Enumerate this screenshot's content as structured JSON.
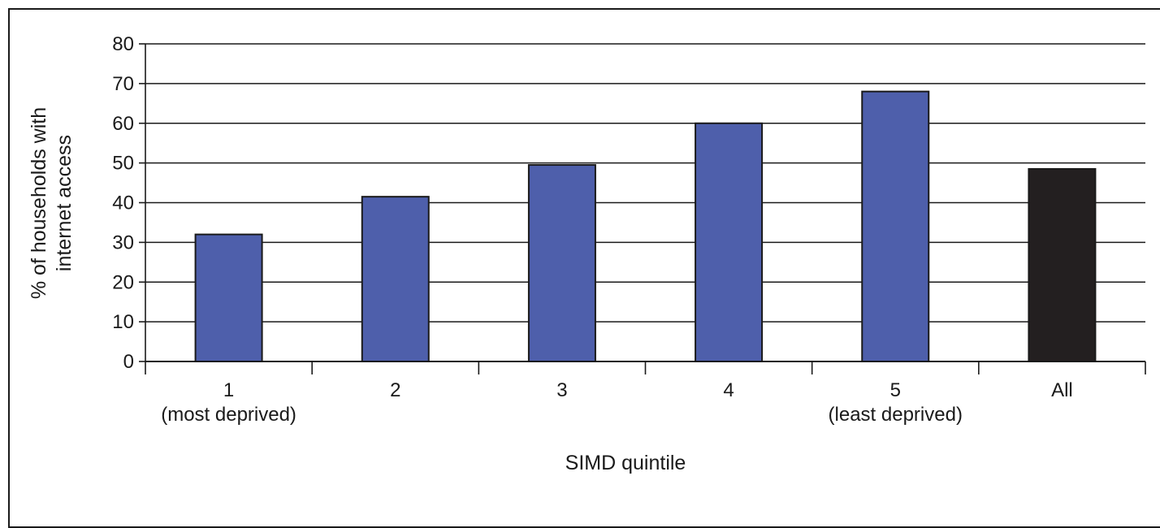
{
  "chart_data": {
    "type": "bar",
    "categories": [
      [
        "1",
        "(most deprived)"
      ],
      [
        "2"
      ],
      [
        "3"
      ],
      [
        "4"
      ],
      [
        "5",
        "(least deprived)"
      ],
      [
        "All"
      ]
    ],
    "values": [
      32,
      41.5,
      49.5,
      60,
      68,
      48.5
    ],
    "bar_colors": [
      "#4e5fab",
      "#4e5fab",
      "#4e5fab",
      "#4e5fab",
      "#4e5fab",
      "#231f20"
    ],
    "xlabel": "SIMD quintile",
    "ylabel": [
      "% of households with",
      "internet access"
    ],
    "ylim": [
      0,
      80
    ],
    "yticks": [
      0,
      10,
      20,
      30,
      40,
      50,
      60,
      70,
      80
    ],
    "grid": true
  }
}
